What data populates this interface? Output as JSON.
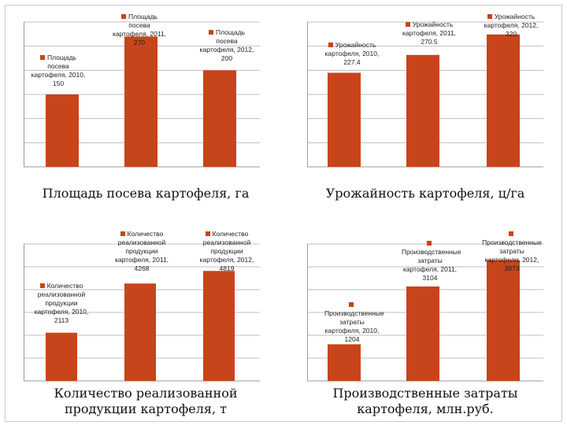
{
  "colors": {
    "bar": "#c8441a",
    "grid": "#bfbfbf",
    "axis": "#9a9a9a",
    "text": "#111111"
  },
  "chart_data": [
    {
      "type": "bar",
      "title": "Площадь посева картофеля, га",
      "categories": [
        "2010",
        "2011",
        "2012"
      ],
      "values": [
        150,
        270,
        200
      ],
      "ylim": [
        0,
        300
      ],
      "labels": [
        "Площадь посева картофеля, 2010, 150",
        "Площадь посева картофеля, 2011, 270",
        "Площадь посева картофеля, 2012, 200"
      ],
      "legend": "none"
    },
    {
      "type": "bar",
      "title": "Урожайность картофеля, ц/га",
      "categories": [
        "2010",
        "2011",
        "2012"
      ],
      "values": [
        227.4,
        270.5,
        320
      ],
      "ylim": [
        0,
        350
      ],
      "labels": [
        "Урожайность картофеля, 2010, 227.4",
        "Урожайность картофеля, 2011, 270.5",
        "Урожайность картофеля, 2012, 320"
      ],
      "legend": "none"
    },
    {
      "type": "bar",
      "title": "Количество реализованной продукции картофеля, т",
      "categories": [
        "2010",
        "2011",
        "2012"
      ],
      "values": [
        2113,
        4268,
        4819
      ],
      "ylim": [
        0,
        6000
      ],
      "labels": [
        "Количество реализованной продукции картофеля, 2010, 2113",
        "Количество реализованной продукции картофеля, 2011, 4268",
        "Количество реализованной продукции картофеля, 2012, 4819"
      ],
      "legend": "none"
    },
    {
      "type": "bar",
      "title": "Производственные затраты картофеля, млн.руб.",
      "categories": [
        "2010",
        "2011",
        "2012"
      ],
      "values": [
        1204,
        3104,
        3973
      ],
      "ylim": [
        0,
        4500
      ],
      "labels": [
        "Производственные затраты картофеля, 2010, 1204",
        "Производственные затраты картофеля, 2011, 3104",
        "Производственные затраты картофеля, 2012, 3973"
      ],
      "legend": "none"
    }
  ]
}
